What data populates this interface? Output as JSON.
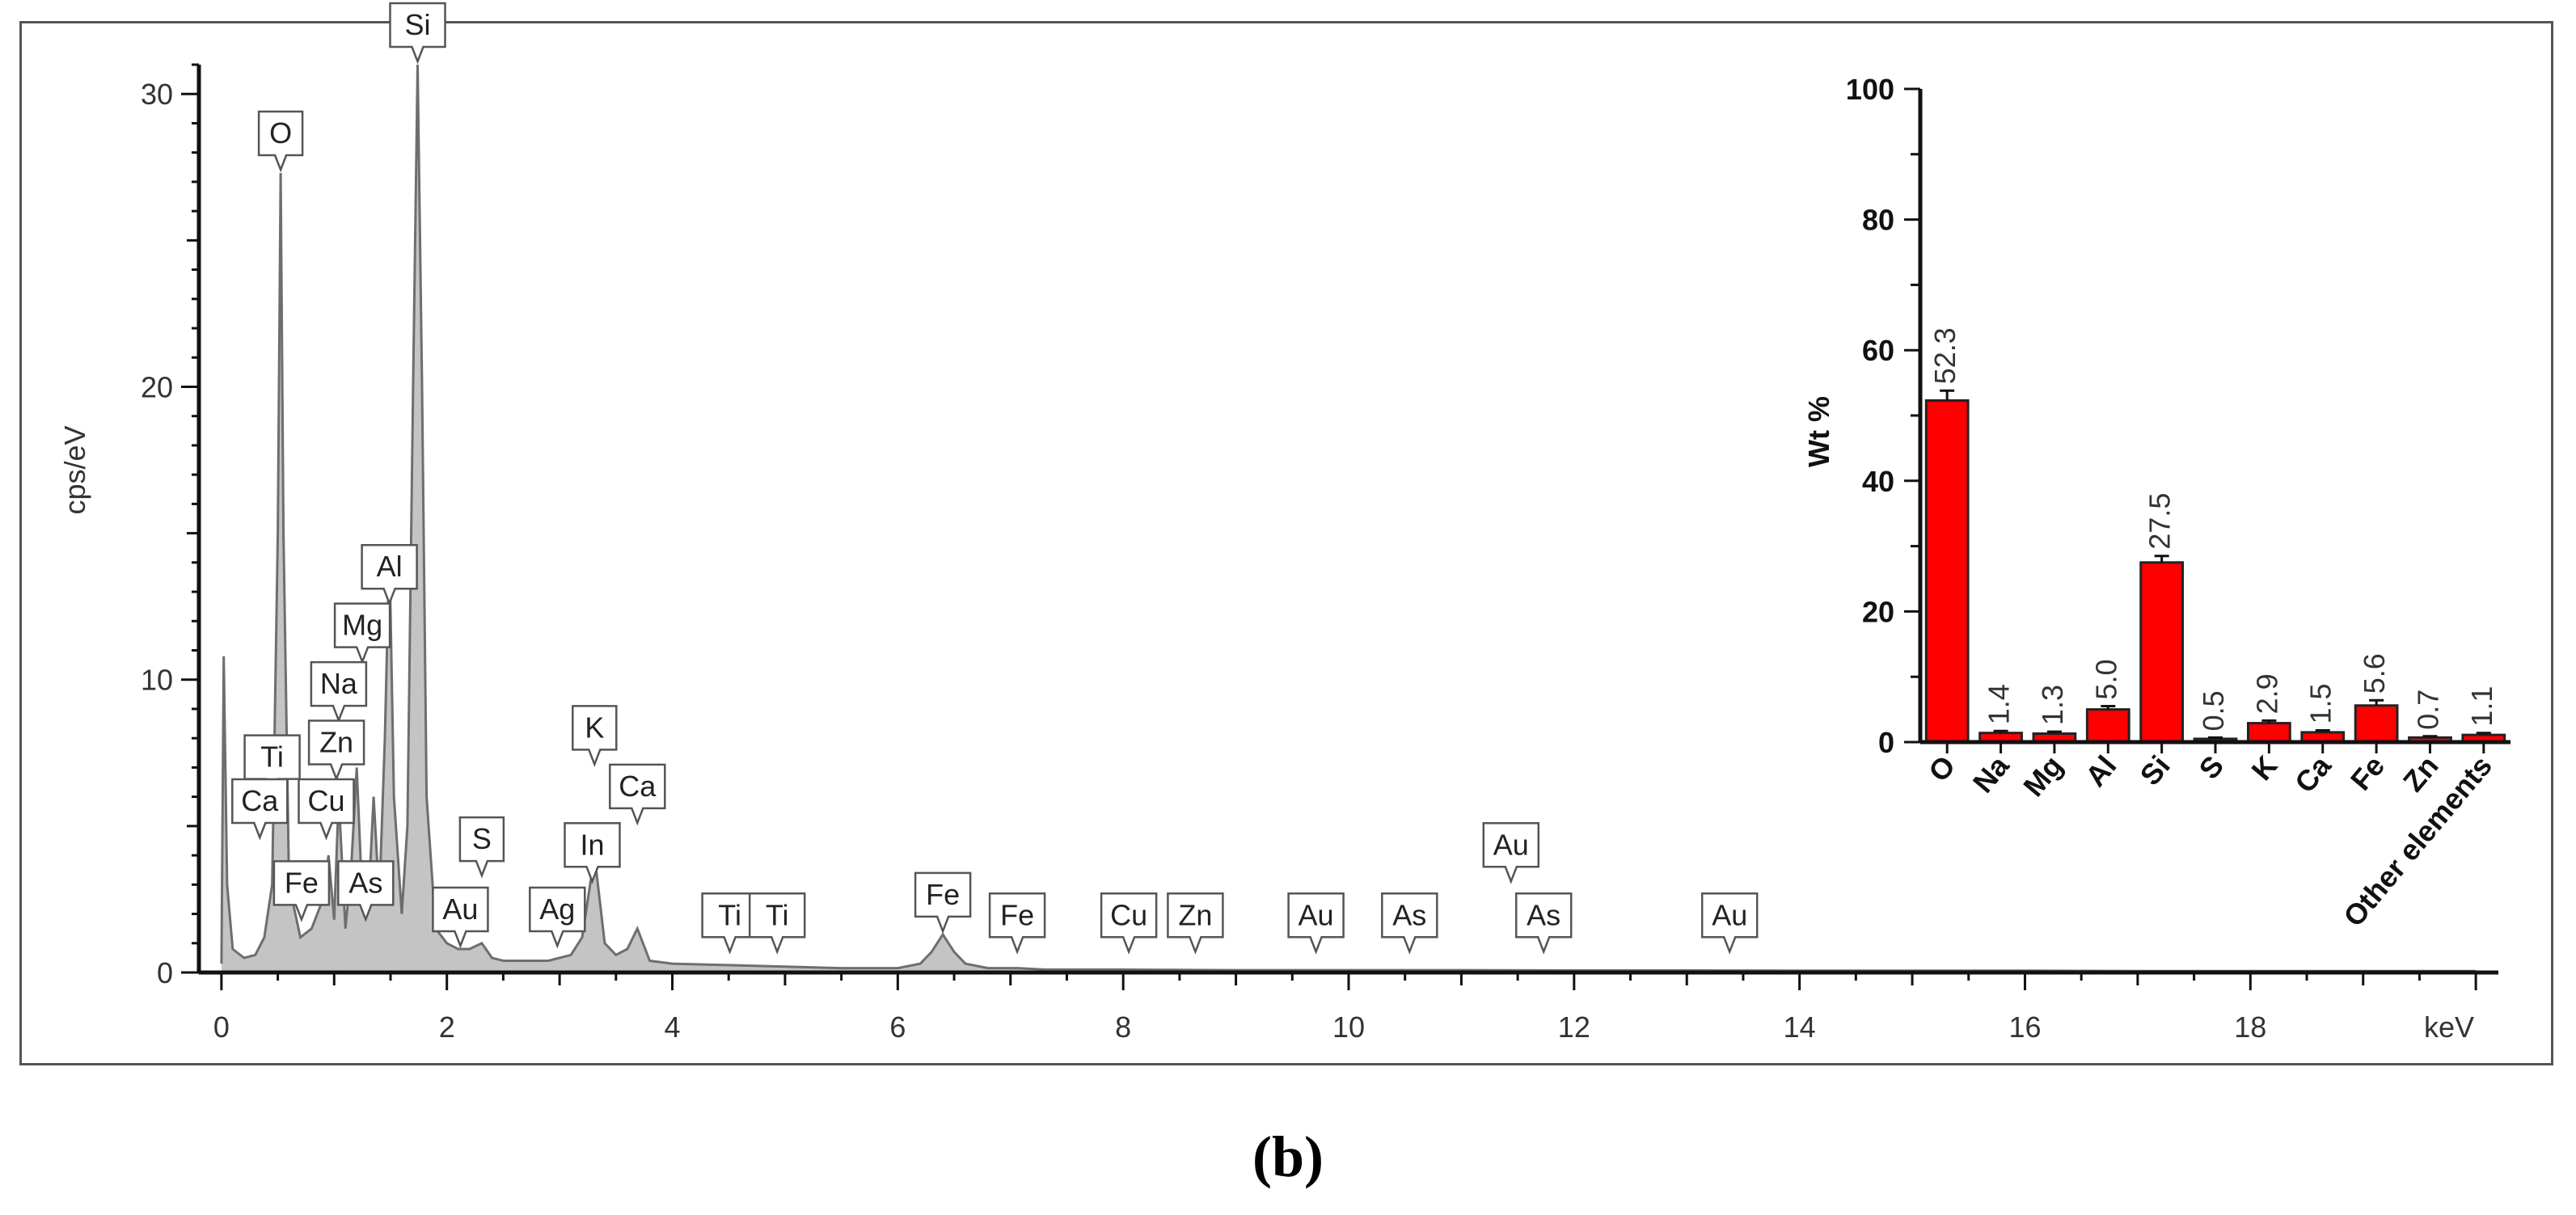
{
  "caption": "(b)",
  "chart_data": [
    {
      "type": "line",
      "xlabel": "keV",
      "ylabel": "cps/eV",
      "xlim": [
        -0.2,
        20.2
      ],
      "ylim": [
        0,
        31
      ],
      "xticks": [
        0,
        2,
        4,
        6,
        8,
        10,
        12,
        14,
        16,
        18
      ],
      "yticks": [
        0,
        10,
        20,
        30
      ],
      "fill": true,
      "grid": false,
      "series": [
        {
          "x": [
            0.0,
            0.02,
            0.05,
            0.1,
            0.2,
            0.3,
            0.38,
            0.45,
            0.5,
            0.525,
            0.55,
            0.6,
            0.7,
            0.8,
            0.9,
            0.95,
            1.0,
            1.04,
            1.1,
            1.15,
            1.2,
            1.25,
            1.3,
            1.35,
            1.4,
            1.45,
            1.49,
            1.53,
            1.6,
            1.65,
            1.7,
            1.74,
            1.78,
            1.82,
            1.9,
            2.0,
            2.1,
            2.2,
            2.31,
            2.4,
            2.5,
            2.7,
            2.9,
            3.1,
            3.2,
            3.31,
            3.4,
            3.5,
            3.6,
            3.69,
            3.8,
            4.0,
            4.5,
            5.0,
            5.5,
            6.0,
            6.2,
            6.3,
            6.4,
            6.5,
            6.6,
            6.8,
            7.06,
            7.3,
            8.0,
            9.0,
            10.0,
            11.0,
            12.0,
            13.0,
            14.0,
            15.0,
            16.0,
            17.0,
            18.0,
            19.0,
            20.0
          ],
          "y": [
            0.3,
            10.8,
            3.0,
            0.8,
            0.5,
            0.6,
            1.2,
            3.0,
            15.0,
            27.3,
            15.0,
            3.0,
            1.2,
            1.5,
            2.5,
            4.0,
            1.8,
            6.0,
            1.5,
            3.5,
            7.0,
            2.5,
            2.0,
            6.0,
            2.5,
            8.0,
            14.5,
            6.0,
            2.0,
            5.0,
            20.0,
            31.0,
            20.0,
            6.0,
            1.5,
            1.0,
            0.8,
            0.8,
            1.0,
            0.5,
            0.4,
            0.4,
            0.4,
            0.6,
            1.2,
            4.0,
            1.0,
            0.6,
            0.8,
            1.5,
            0.4,
            0.3,
            0.25,
            0.2,
            0.15,
            0.15,
            0.3,
            0.7,
            1.3,
            0.7,
            0.3,
            0.15,
            0.15,
            0.1,
            0.1,
            0.08,
            0.08,
            0.08,
            0.07,
            0.07,
            0.06,
            0.06,
            0.06,
            0.05,
            0.05,
            0.05,
            0.05
          ]
        }
      ],
      "annotations": [
        {
          "text": "O",
          "x": 0.525,
          "y": 27.3
        },
        {
          "text": "Si",
          "x": 1.74,
          "y": 31.0
        },
        {
          "text": "Al",
          "x": 1.49,
          "y": 12.5
        },
        {
          "text": "Mg",
          "x": 1.25,
          "y": 10.5
        },
        {
          "text": "Na",
          "x": 1.04,
          "y": 8.5
        },
        {
          "text": "Zn",
          "x": 1.02,
          "y": 6.5
        },
        {
          "text": "Ti",
          "x": 0.45,
          "y": 6.0
        },
        {
          "text": "Cu",
          "x": 0.93,
          "y": 4.5
        },
        {
          "text": "Ca",
          "x": 0.34,
          "y": 4.5
        },
        {
          "text": "Fe",
          "x": 0.71,
          "y": 1.7
        },
        {
          "text": "As",
          "x": 1.28,
          "y": 1.7
        },
        {
          "text": "Au",
          "x": 2.12,
          "y": 0.8
        },
        {
          "text": "S",
          "x": 2.31,
          "y": 3.2
        },
        {
          "text": "Ag",
          "x": 2.98,
          "y": 0.8
        },
        {
          "text": "In",
          "x": 3.29,
          "y": 3.0
        },
        {
          "text": "K",
          "x": 3.31,
          "y": 7.0
        },
        {
          "text": "Ca",
          "x": 3.69,
          "y": 5.0
        },
        {
          "text": "Ti",
          "x": 4.51,
          "y": 0.6
        },
        {
          "text": "Ti",
          "x": 4.93,
          "y": 0.6
        },
        {
          "text": "Fe",
          "x": 6.4,
          "y": 1.3
        },
        {
          "text": "Fe",
          "x": 7.06,
          "y": 0.6
        },
        {
          "text": "Cu",
          "x": 8.05,
          "y": 0.6
        },
        {
          "text": "Zn",
          "x": 8.64,
          "y": 0.6
        },
        {
          "text": "Au",
          "x": 9.71,
          "y": 0.6
        },
        {
          "text": "As",
          "x": 10.54,
          "y": 0.6
        },
        {
          "text": "Au",
          "x": 11.44,
          "y": 3.0
        },
        {
          "text": "As",
          "x": 11.73,
          "y": 0.6
        },
        {
          "text": "Au",
          "x": 13.38,
          "y": 0.6
        }
      ]
    },
    {
      "type": "bar",
      "ylabel": "Wt %",
      "ylim": [
        0,
        100
      ],
      "yticks": [
        0,
        20,
        40,
        60,
        80,
        100
      ],
      "categories": [
        "O",
        "Na",
        "Mg",
        "Al",
        "Si",
        "S",
        "K",
        "Ca",
        "Fe",
        "Zn",
        "Other elements"
      ],
      "values": [
        52.3,
        1.4,
        1.3,
        5.0,
        27.5,
        0.5,
        2.9,
        1.5,
        5.6,
        0.7,
        1.1
      ],
      "data_labels": [
        "52.3",
        "1.4",
        "1.3",
        "5.0",
        "27.5",
        "0.5",
        "2.9",
        "1.5",
        "5.6",
        "0.7",
        "1.1"
      ],
      "error": [
        1.5,
        0.3,
        0.3,
        0.5,
        1.0,
        0.2,
        0.4,
        0.3,
        0.8,
        0.2,
        0.3
      ],
      "bar_color": "#ff0000"
    }
  ]
}
